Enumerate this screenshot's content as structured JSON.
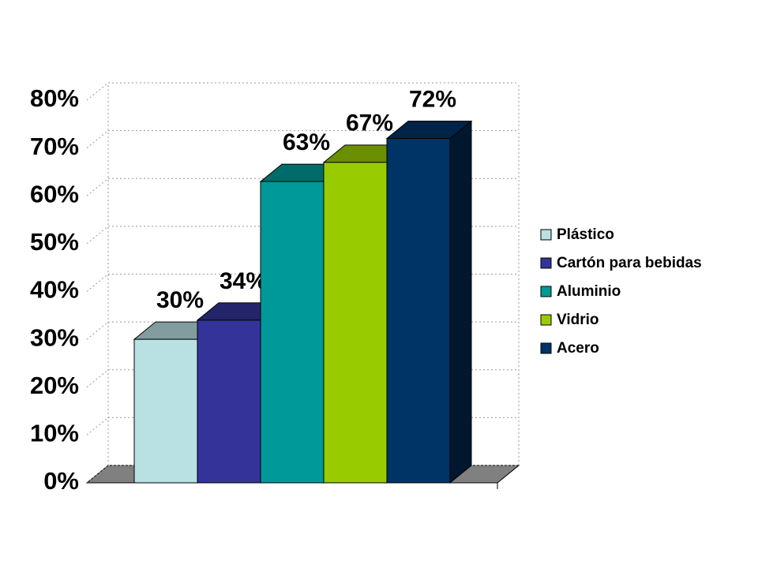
{
  "chart_data": {
    "type": "bar3d",
    "series": [
      {
        "name": "Plástico",
        "color": "#b9e0e3",
        "values": [
          30
        ],
        "value_labels": [
          "30%"
        ]
      },
      {
        "name": "Cartón para bebidas",
        "color": "#333399",
        "values": [
          34
        ],
        "value_labels": [
          "34%"
        ]
      },
      {
        "name": "Aluminio",
        "color": "#009999",
        "values": [
          63
        ],
        "value_labels": [
          "63%"
        ]
      },
      {
        "name": "Vidrio",
        "color": "#99cc00",
        "values": [
          67
        ],
        "value_labels": [
          "67%"
        ]
      },
      {
        "name": "Acero",
        "color": "#003366",
        "values": [
          72
        ],
        "value_labels": [
          "72%"
        ]
      }
    ],
    "ylim": [
      0,
      80
    ],
    "yticks": [
      {
        "value": 0,
        "label": "0%"
      },
      {
        "value": 10,
        "label": "10%"
      },
      {
        "value": 20,
        "label": "20%"
      },
      {
        "value": 30,
        "label": "30%"
      },
      {
        "value": 40,
        "label": "40%"
      },
      {
        "value": 50,
        "label": "50%"
      },
      {
        "value": 60,
        "label": "60%"
      },
      {
        "value": 70,
        "label": "70%"
      },
      {
        "value": 80,
        "label": "80%"
      }
    ],
    "grid": true,
    "legend": "right"
  }
}
